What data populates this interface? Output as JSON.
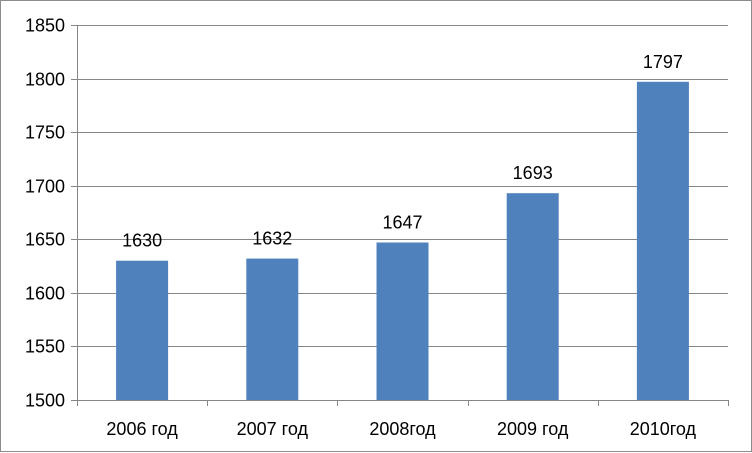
{
  "chart_data": {
    "type": "bar",
    "categories": [
      "2006 год",
      "2007 год",
      "2008год",
      "2009 год",
      "2010год"
    ],
    "values": [
      1630,
      1632,
      1647,
      1693,
      1797
    ],
    "data_labels": [
      "1630",
      "1632",
      "1647",
      "1693",
      "1797"
    ],
    "title": "",
    "xlabel": "",
    "ylabel": "",
    "ylim": [
      1500,
      1850
    ],
    "yticks": [
      1500,
      1550,
      1600,
      1650,
      1700,
      1750,
      1800,
      1850
    ],
    "ytick_labels": [
      "1500",
      "1550",
      "1600",
      "1650",
      "1700",
      "1750",
      "1800",
      "1850"
    ],
    "grid": true,
    "legend": "none",
    "bar_color": "#4f81bd",
    "grid_color": "#868686"
  }
}
